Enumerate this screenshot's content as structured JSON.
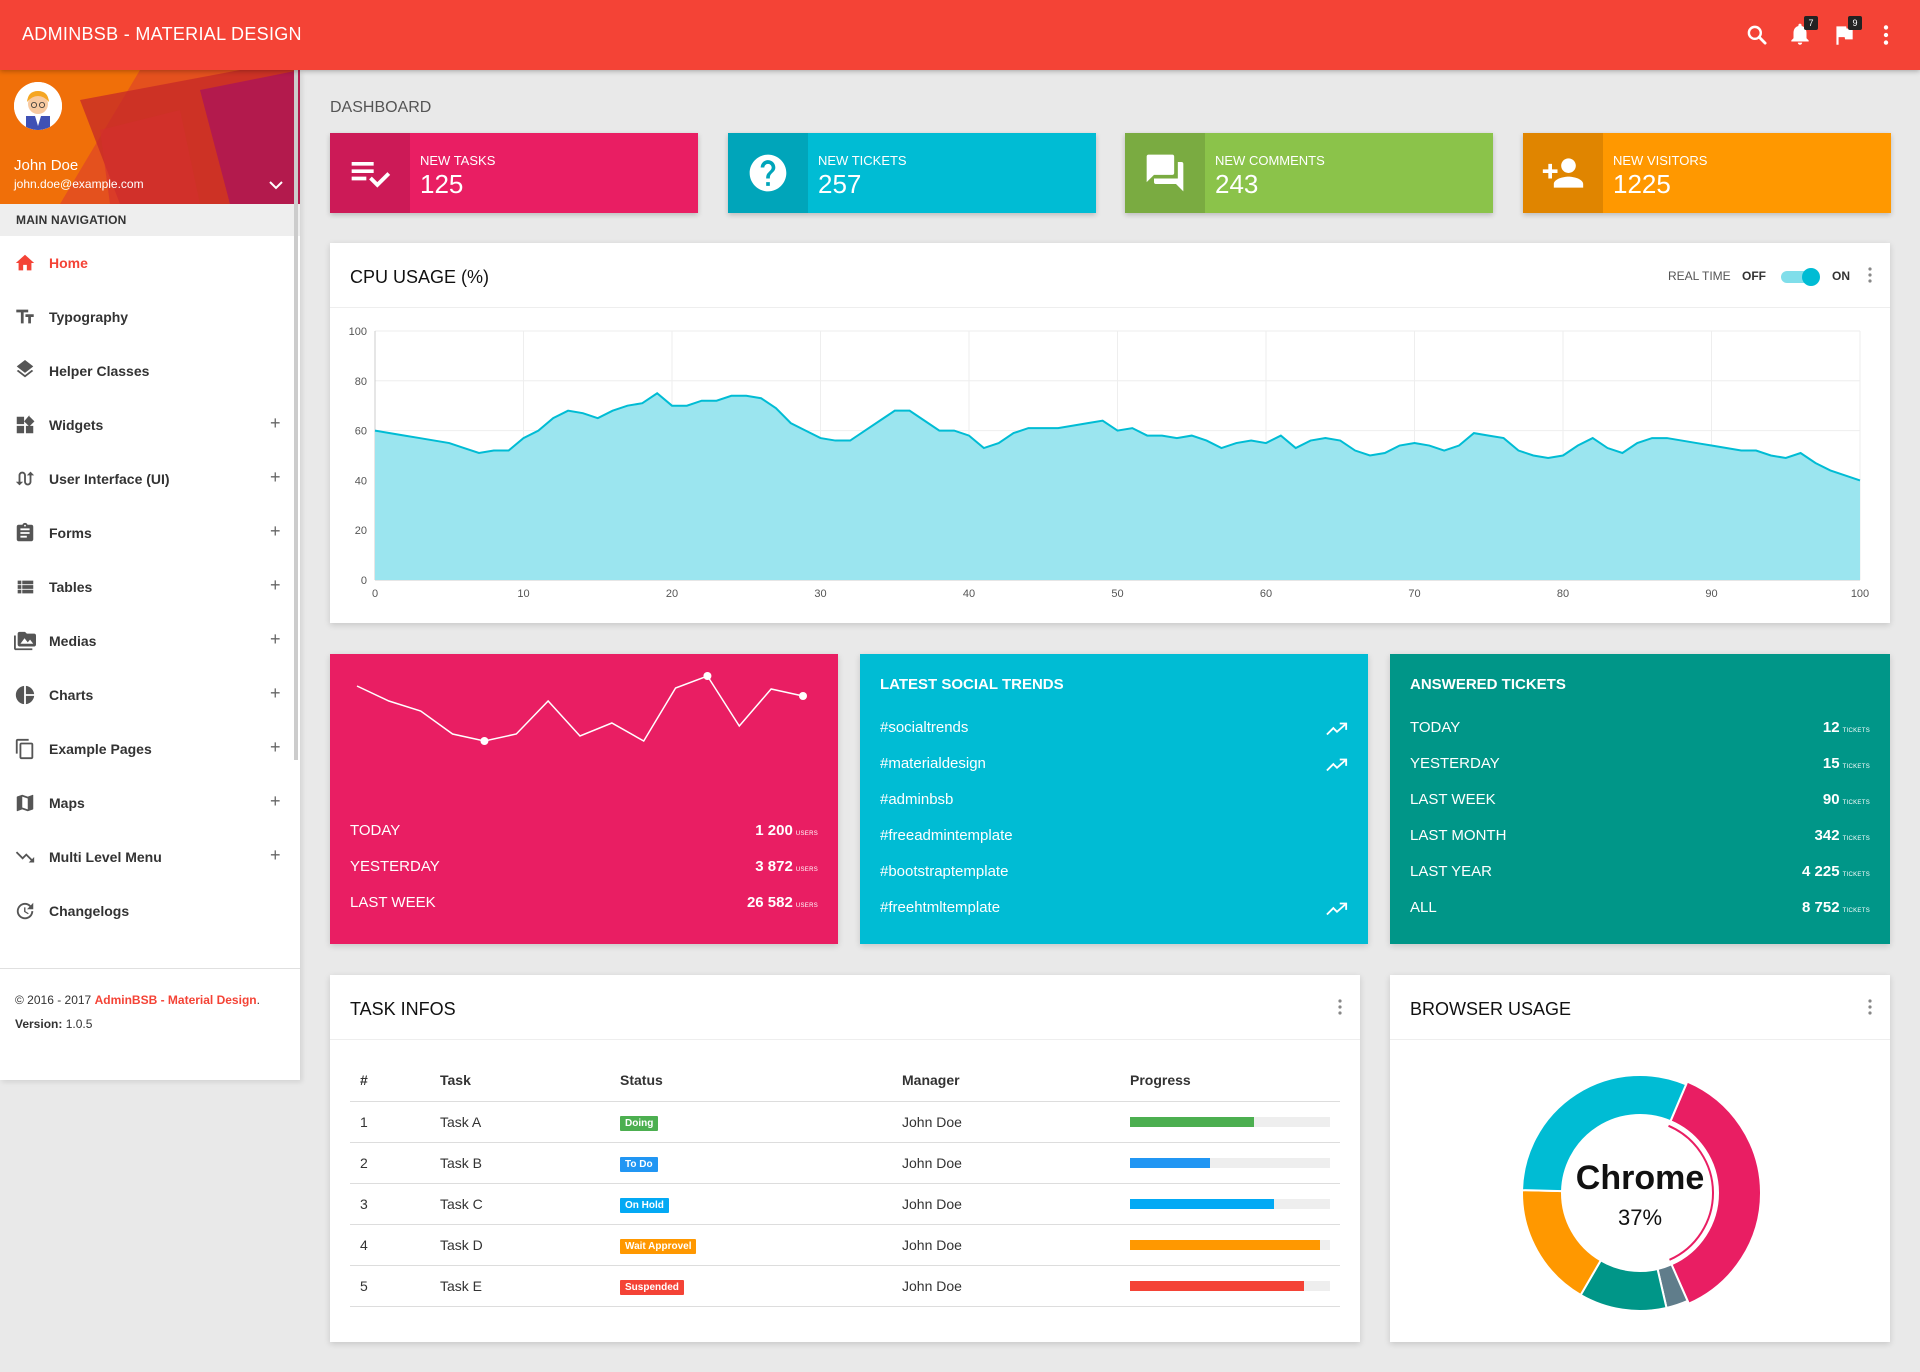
{
  "app": {
    "title": "ADMINBSB - MATERIAL DESIGN",
    "notifications_count": "7",
    "tasks_count": "9"
  },
  "user": {
    "name": "John Doe",
    "email": "john.doe@example.com"
  },
  "sidebar": {
    "header": "MAIN NAVIGATION",
    "items": [
      {
        "label": "Home",
        "icon": "home-icon",
        "active": true,
        "expandable": false
      },
      {
        "label": "Typography",
        "icon": "text-fields-icon",
        "expandable": false
      },
      {
        "label": "Helper Classes",
        "icon": "layers-icon",
        "expandable": false
      },
      {
        "label": "Widgets",
        "icon": "widgets-icon",
        "expandable": true
      },
      {
        "label": "User Interface (UI)",
        "icon": "swap-calls-icon",
        "expandable": true
      },
      {
        "label": "Forms",
        "icon": "assignment-icon",
        "expandable": true
      },
      {
        "label": "Tables",
        "icon": "view-list-icon",
        "expandable": true
      },
      {
        "label": "Medias",
        "icon": "perm-media-icon",
        "expandable": true
      },
      {
        "label": "Charts",
        "icon": "pie-chart-icon",
        "expandable": true
      },
      {
        "label": "Example Pages",
        "icon": "content-copy-icon",
        "expandable": true
      },
      {
        "label": "Maps",
        "icon": "map-icon",
        "expandable": true
      },
      {
        "label": "Multi Level Menu",
        "icon": "trending-down-icon",
        "expandable": true
      },
      {
        "label": "Changelogs",
        "icon": "update-icon",
        "expandable": false
      }
    ],
    "expand_symbol": "+",
    "footer": {
      "copyright": "© 2016 - 2017 ",
      "brand": "AdminBSB - Material Design",
      "brand_suffix": ".",
      "version_label": "Version: ",
      "version": "1.0.5"
    }
  },
  "page": {
    "title": "DASHBOARD"
  },
  "info_boxes": [
    {
      "label": "NEW TASKS",
      "value": "125",
      "color": "#e91e63",
      "icon": "playlist-add-check-icon"
    },
    {
      "label": "NEW TICKETS",
      "value": "257",
      "color": "#00bcd4",
      "icon": "help-icon"
    },
    {
      "label": "NEW COMMENTS",
      "value": "243",
      "color": "#8bc34a",
      "icon": "forum-icon"
    },
    {
      "label": "NEW VISITORS",
      "value": "1225",
      "color": "#ff9800",
      "icon": "person-add-icon"
    }
  ],
  "cpu": {
    "title": "CPU USAGE (%)",
    "realtime_label": "REAL TIME",
    "off_label": "OFF",
    "on_label": "ON",
    "realtime_on": true
  },
  "chart_data": {
    "type": "area",
    "xlim": [
      0,
      100
    ],
    "ylim": [
      0,
      100
    ],
    "x_ticks": [
      0,
      10,
      20,
      30,
      40,
      50,
      60,
      70,
      80,
      90,
      100
    ],
    "y_ticks": [
      0,
      20,
      40,
      60,
      80,
      100
    ],
    "grid": true,
    "color": "#00bcd4",
    "fill": "#9be5ef",
    "y": [
      60,
      59,
      58,
      57,
      56,
      55,
      53,
      51,
      52,
      52,
      57,
      60,
      65,
      68,
      67,
      65,
      68,
      70,
      71,
      75,
      70,
      70,
      72,
      72,
      74,
      74,
      73,
      69,
      63,
      60,
      57,
      56,
      56,
      60,
      64,
      68,
      68,
      64,
      60,
      60,
      58,
      53,
      55,
      59,
      61,
      61,
      61,
      62,
      63,
      64,
      60,
      61,
      58,
      58,
      57,
      58,
      56,
      53,
      55,
      56,
      55,
      58,
      53,
      56,
      57,
      56,
      52,
      50,
      51,
      54,
      55,
      54,
      52,
      54,
      59,
      58,
      57,
      52,
      50,
      49,
      50,
      54,
      57,
      53,
      51,
      55,
      57,
      57,
      56,
      55,
      54,
      53,
      52,
      52,
      50,
      49,
      51,
      47,
      44,
      42,
      40
    ]
  },
  "visitors_card": {
    "color": "#e91e63",
    "sparkline": [
      8,
      6.5,
      5.5,
      3.2,
      2.5,
      3.2,
      6.5,
      3,
      4.3,
      2.5,
      7.8,
      9,
      4,
      7.7,
      7
    ],
    "rows": [
      {
        "label": "TODAY",
        "value": "1 200",
        "unit": "USERS"
      },
      {
        "label": "YESTERDAY",
        "value": "3 872",
        "unit": "USERS"
      },
      {
        "label": "LAST WEEK",
        "value": "26 582",
        "unit": "USERS"
      }
    ]
  },
  "social_card": {
    "title": "LATEST SOCIAL TRENDS",
    "color": "#00bcd4",
    "items": [
      {
        "label": "#socialtrends",
        "trending": true
      },
      {
        "label": "#materialdesign",
        "trending": true
      },
      {
        "label": "#adminbsb",
        "trending": false
      },
      {
        "label": "#freeadmintemplate",
        "trending": false
      },
      {
        "label": "#bootstraptemplate",
        "trending": false
      },
      {
        "label": "#freehtmltemplate",
        "trending": true
      }
    ]
  },
  "tickets_card": {
    "title": "ANSWERED TICKETS",
    "color": "#009688",
    "rows": [
      {
        "label": "TODAY",
        "value": "12",
        "unit": "TICKETS"
      },
      {
        "label": "YESTERDAY",
        "value": "15",
        "unit": "TICKETS"
      },
      {
        "label": "LAST WEEK",
        "value": "90",
        "unit": "TICKETS"
      },
      {
        "label": "LAST MONTH",
        "value": "342",
        "unit": "TICKETS"
      },
      {
        "label": "LAST YEAR",
        "value": "4 225",
        "unit": "TICKETS"
      },
      {
        "label": "ALL",
        "value": "8 752",
        "unit": "TICKETS"
      }
    ]
  },
  "tasks": {
    "title": "TASK INFOS",
    "columns": [
      "#",
      "Task",
      "Status",
      "Manager",
      "Progress"
    ],
    "rows": [
      {
        "id": "1",
        "task": "Task A",
        "status": "Doing",
        "status_color": "#4caf50",
        "manager": "John Doe",
        "progress": 0.62,
        "progress_color": "#4caf50"
      },
      {
        "id": "2",
        "task": "Task B",
        "status": "To Do",
        "status_color": "#2196f3",
        "manager": "John Doe",
        "progress": 0.4,
        "progress_color": "#2196f3"
      },
      {
        "id": "3",
        "task": "Task C",
        "status": "On Hold",
        "status_color": "#03a9f4",
        "manager": "John Doe",
        "progress": 0.72,
        "progress_color": "#03a9f4"
      },
      {
        "id": "4",
        "task": "Task D",
        "status": "Wait Approvel",
        "status_color": "#ff9800",
        "manager": "John Doe",
        "progress": 0.95,
        "progress_color": "#ff9800"
      },
      {
        "id": "5",
        "task": "Task E",
        "status": "Suspended",
        "status_color": "#f44336",
        "manager": "John Doe",
        "progress": 0.87,
        "progress_color": "#f44336"
      }
    ]
  },
  "browser": {
    "title": "BROWSER USAGE",
    "center_label": "Chrome",
    "center_value": "37%",
    "slices": [
      {
        "value": 37,
        "color": "#e91e63"
      },
      {
        "value": 3,
        "color": "#607d8b"
      },
      {
        "value": 12,
        "color": "#009688"
      },
      {
        "value": 17,
        "color": "#ff9800"
      },
      {
        "value": 31,
        "color": "#00bcd4"
      }
    ]
  }
}
